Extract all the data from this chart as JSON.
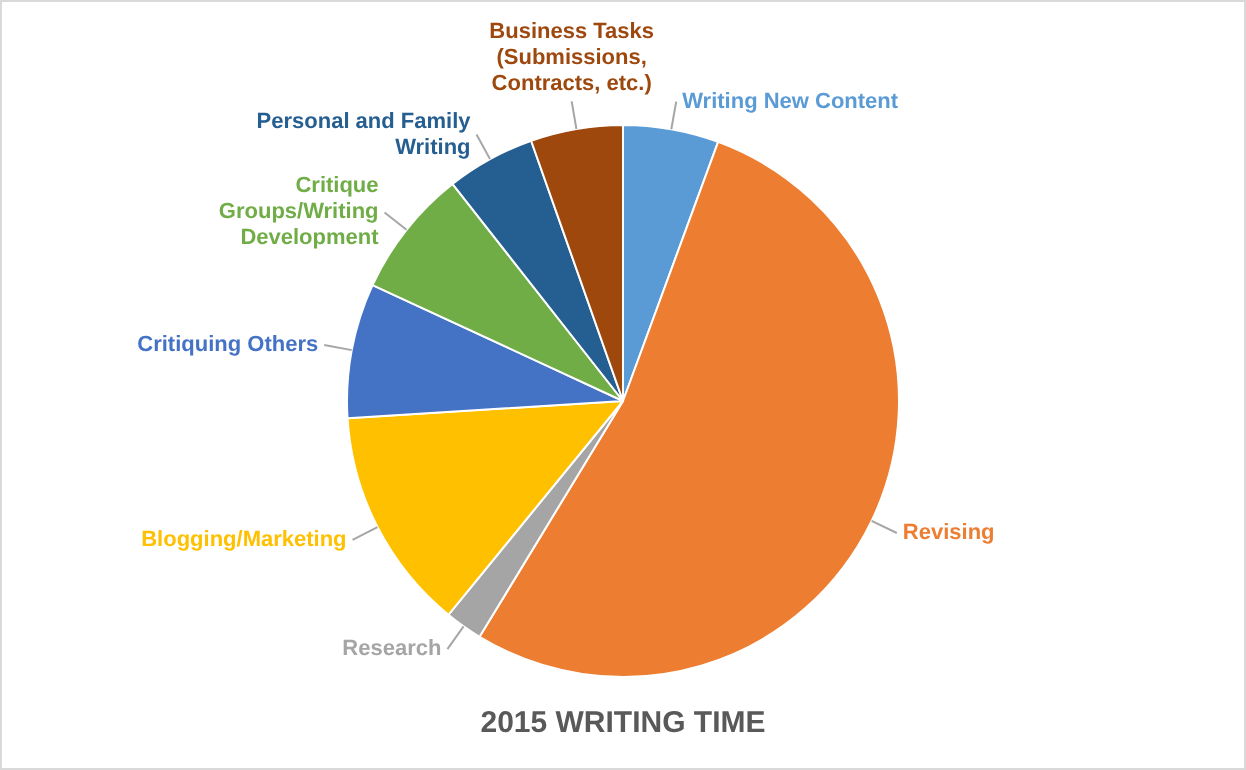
{
  "chart_data": {
    "type": "pie",
    "title": "2015 WRITING TIME",
    "categories": [
      "Writing New Content",
      "Revising",
      "Research",
      "Blogging/Marketing",
      "Critiquing Others",
      "Critique Groups/Writing Development",
      "Personal and Family Writing",
      "Business Tasks (Submissions, Contracts, etc.)"
    ],
    "values": [
      5.6,
      53.1,
      2.2,
      13.1,
      7.9,
      7.5,
      5.2,
      5.4
    ],
    "colors": [
      "#5b9bd5",
      "#ed7d31",
      "#a5a5a5",
      "#ffc000",
      "#4472c4",
      "#70ad47",
      "#255e91",
      "#9e480e"
    ],
    "legend": false
  }
}
